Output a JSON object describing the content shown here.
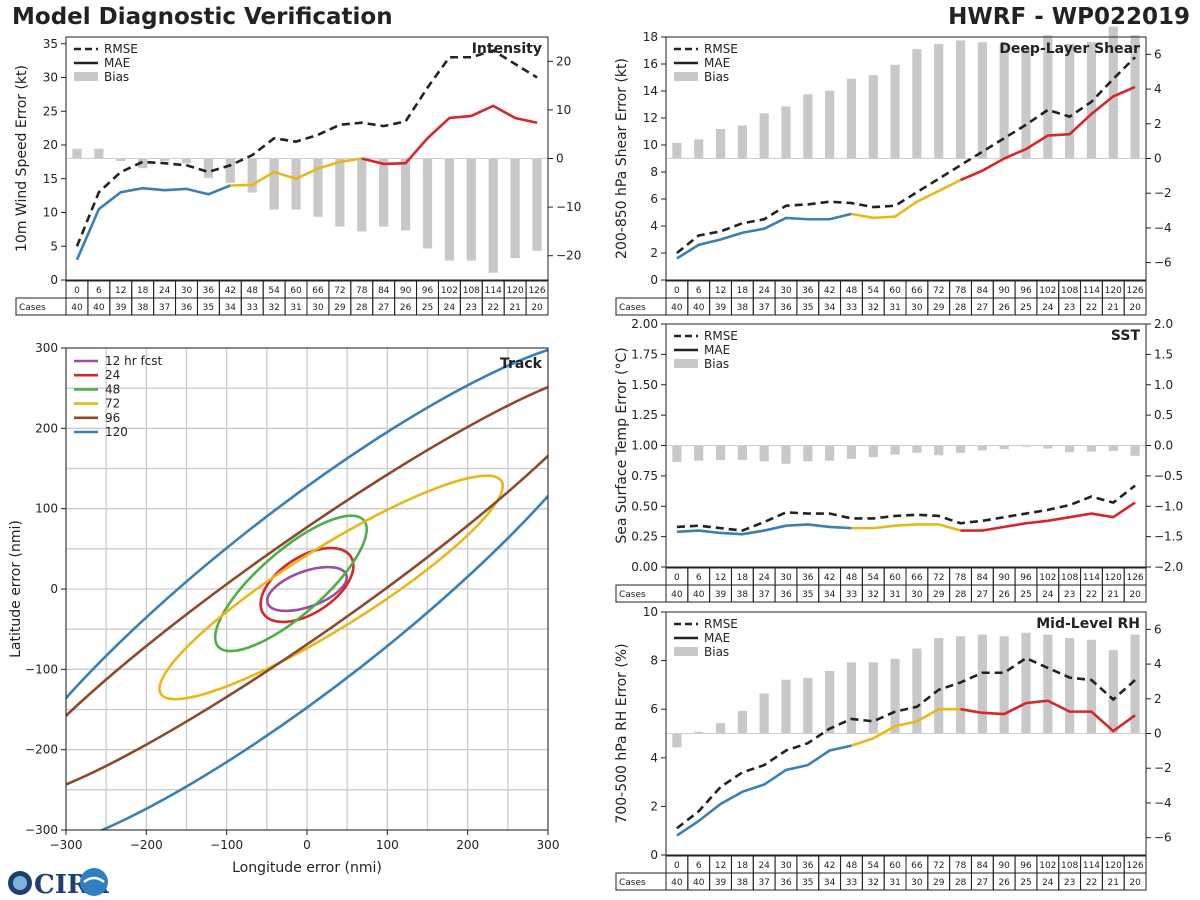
{
  "header": {
    "title": "Model Diagnostic Verification",
    "model_storm": "HWRF - WP022019"
  },
  "legend": {
    "rmse": "RMSE",
    "mae": "MAE",
    "bias": "Bias"
  },
  "colors": {
    "rmse": "#222222",
    "bias": "#c8c8c8",
    "mae_phases": [
      "#3a7fb5",
      "#e8b71a",
      "#d62728"
    ],
    "grid": "#cccccc"
  },
  "forecast_hours": [
    "0",
    "6",
    "12",
    "18",
    "24",
    "30",
    "36",
    "42",
    "48",
    "54",
    "60",
    "66",
    "72",
    "78",
    "84",
    "90",
    "96",
    "102",
    "108",
    "114",
    "120",
    "126"
  ],
  "cases": [
    40,
    40,
    39,
    38,
    37,
    36,
    35,
    34,
    33,
    32,
    31,
    30,
    29,
    28,
    27,
    26,
    25,
    24,
    23,
    22,
    21,
    20
  ],
  "cases_label": "Cases",
  "logo": {
    "text": "CIRA"
  },
  "chart_data": [
    {
      "id": "intensity",
      "type": "line",
      "title": "Intensity",
      "ylabel": "10m Wind Speed Error (kt)",
      "ylim": [
        0,
        36
      ],
      "yticks": [
        0,
        5,
        10,
        15,
        20,
        25,
        30,
        35
      ],
      "y2lim": [
        -25,
        25
      ],
      "y2ticks": [
        -20,
        -10,
        0,
        10,
        20
      ],
      "phase_breaks": [
        7,
        13
      ],
      "series": [
        {
          "name": "RMSE",
          "values": [
            5,
            13,
            16,
            17.5,
            17.3,
            17,
            16,
            17,
            18.5,
            21,
            20.5,
            21.5,
            23,
            23.3,
            22.8,
            23.5,
            28.5,
            33,
            33,
            34,
            32,
            30
          ]
        },
        {
          "name": "MAE",
          "values": [
            3,
            10.5,
            13,
            13.6,
            13.3,
            13.5,
            12.7,
            14,
            14.1,
            16,
            15,
            16.5,
            17.5,
            18,
            17.2,
            17.3,
            21,
            24,
            24.3,
            25.8,
            24,
            23.3
          ]
        },
        {
          "name": "Bias",
          "axis": "right",
          "values": [
            2,
            2,
            -0.5,
            -2,
            -0.5,
            -1,
            -4,
            -5,
            -7,
            -10.5,
            -10.5,
            -12,
            -14,
            -15,
            -14,
            -14.8,
            -18.5,
            -21,
            -21,
            -23.5,
            -20.5,
            -19
          ]
        }
      ]
    },
    {
      "id": "shear",
      "type": "line",
      "title": "Deep-Layer Shear",
      "ylabel": "200-850 hPa Shear Error (kt)",
      "ylim": [
        0,
        18
      ],
      "yticks": [
        0,
        2,
        4,
        6,
        8,
        10,
        12,
        14,
        16,
        18
      ],
      "y2lim": [
        -7,
        7
      ],
      "y2ticks": [
        -6,
        -4,
        -2,
        0,
        2,
        4,
        6
      ],
      "phase_breaks": [
        8,
        13
      ],
      "series": [
        {
          "name": "RMSE",
          "values": [
            2,
            3.3,
            3.6,
            4.2,
            4.5,
            5.5,
            5.6,
            5.8,
            5.7,
            5.4,
            5.5,
            6.5,
            7.5,
            8.5,
            9.5,
            10.5,
            11.5,
            12.6,
            12.1,
            13.2,
            14.9,
            16.5
          ]
        },
        {
          "name": "MAE",
          "values": [
            1.6,
            2.6,
            3,
            3.5,
            3.8,
            4.6,
            4.5,
            4.5,
            4.9,
            4.6,
            4.7,
            5.8,
            6.6,
            7.4,
            8.1,
            9,
            9.7,
            10.7,
            10.8,
            12.3,
            13.6,
            14.3
          ]
        },
        {
          "name": "Bias",
          "axis": "right",
          "values": [
            0.9,
            1.1,
            1.7,
            1.9,
            2.6,
            3,
            3.7,
            3.9,
            4.6,
            4.8,
            5.4,
            6.3,
            6.6,
            6.8,
            6.7,
            6.6,
            6.4,
            7.1,
            6.6,
            6.7,
            7.6,
            7.1
          ]
        }
      ]
    },
    {
      "id": "sst",
      "type": "line",
      "title": "SST",
      "ylabel": "Sea Surface Temp Error (°C)",
      "ylim": [
        0,
        2.0
      ],
      "yticks": [
        0,
        0.25,
        0.5,
        0.75,
        1.0,
        1.25,
        1.5,
        1.75,
        2.0
      ],
      "ytick_labels": [
        "0.00",
        "0.25",
        "0.50",
        "0.75",
        "1.00",
        "1.25",
        "1.50",
        "1.75",
        "2.00"
      ],
      "y2lim": [
        -2,
        2
      ],
      "y2ticks": [
        -2,
        -1.5,
        -1,
        -0.5,
        0,
        0.5,
        1,
        1.5,
        2
      ],
      "y2tick_labels": [
        "−2.0",
        "−1.5",
        "−1.0",
        "−0.5",
        "0.0",
        "0.5",
        "1.0",
        "1.5",
        "2.0"
      ],
      "phase_breaks": [
        8,
        13
      ],
      "series": [
        {
          "name": "RMSE",
          "values": [
            0.33,
            0.34,
            0.32,
            0.3,
            0.37,
            0.45,
            0.44,
            0.44,
            0.4,
            0.4,
            0.42,
            0.43,
            0.42,
            0.36,
            0.38,
            0.41,
            0.44,
            0.47,
            0.51,
            0.58,
            0.53,
            0.67
          ]
        },
        {
          "name": "MAE",
          "values": [
            0.29,
            0.3,
            0.28,
            0.27,
            0.3,
            0.34,
            0.35,
            0.33,
            0.32,
            0.32,
            0.34,
            0.35,
            0.35,
            0.3,
            0.3,
            0.33,
            0.36,
            0.38,
            0.41,
            0.44,
            0.41,
            0.53
          ]
        },
        {
          "name": "Bias",
          "axis": "right",
          "values": [
            -0.27,
            -0.25,
            -0.24,
            -0.24,
            -0.26,
            -0.3,
            -0.26,
            -0.25,
            -0.22,
            -0.19,
            -0.15,
            -0.12,
            -0.16,
            -0.12,
            -0.08,
            -0.06,
            -0.02,
            -0.05,
            -0.11,
            -0.1,
            -0.09,
            -0.17
          ]
        }
      ]
    },
    {
      "id": "rh",
      "type": "line",
      "title": "Mid-Level RH",
      "ylabel": "700-500 hPa RH Error (%)",
      "ylim": [
        0,
        10
      ],
      "yticks": [
        0,
        2,
        4,
        6,
        8,
        10
      ],
      "y2lim": [
        -7,
        7
      ],
      "y2ticks": [
        -6,
        -4,
        -2,
        0,
        2,
        4,
        6
      ],
      "phase_breaks": [
        8,
        13
      ],
      "series": [
        {
          "name": "RMSE",
          "values": [
            1.1,
            1.8,
            2.8,
            3.4,
            3.7,
            4.3,
            4.6,
            5.2,
            5.6,
            5.5,
            5.9,
            6.1,
            6.8,
            7.1,
            7.5,
            7.5,
            8.1,
            7.7,
            7.3,
            7.2,
            6.4,
            7.2
          ]
        },
        {
          "name": "MAE",
          "values": [
            0.8,
            1.4,
            2.1,
            2.6,
            2.9,
            3.5,
            3.7,
            4.3,
            4.5,
            4.8,
            5.3,
            5.5,
            6,
            6,
            5.85,
            5.8,
            6.25,
            6.35,
            5.9,
            5.9,
            5.1,
            5.75
          ]
        },
        {
          "name": "Bias",
          "axis": "right",
          "values": [
            -0.8,
            0.1,
            0.6,
            1.3,
            2.3,
            3.1,
            3.2,
            3.6,
            4.1,
            4.1,
            4.3,
            4.9,
            5.5,
            5.6,
            5.7,
            5.6,
            5.8,
            5.7,
            5.5,
            5.4,
            4.8,
            5.7
          ]
        }
      ]
    },
    {
      "id": "track",
      "type": "ellipse",
      "title": "Track",
      "xlabel": "Longitude error (nmi)",
      "ylabel": "Latitude error (nmi)",
      "xlim": [
        -300,
        300
      ],
      "ylim": [
        -300,
        300
      ],
      "xticks": [
        -300,
        -200,
        -100,
        0,
        100,
        200,
        300
      ],
      "yticks": [
        -300,
        -200,
        -100,
        0,
        100,
        200,
        300
      ],
      "ellipses": [
        {
          "label": "12 hr fcst",
          "color": "#984ea3",
          "cx": 0,
          "cy": 0,
          "a": 52,
          "b": 22,
          "angle_deg": 20
        },
        {
          "label": "24",
          "color": "#d62728",
          "cx": 0,
          "cy": 5,
          "a": 65,
          "b": 35,
          "angle_deg": 33
        },
        {
          "label": "48",
          "color": "#4daf4a",
          "cx": -20,
          "cy": 7,
          "a": 120,
          "b": 40,
          "angle_deg": 41
        },
        {
          "label": "72",
          "color": "#e8b71a",
          "cx": 30,
          "cy": 2,
          "a": 250,
          "b": 50,
          "angle_deg": 32
        },
        {
          "label": "96",
          "color": "#8b4a2b",
          "cx": 0,
          "cy": 4,
          "a": 450,
          "b": 60,
          "angle_deg": 35
        },
        {
          "label": "120",
          "color": "#3a7fb5",
          "cx": 0,
          "cy": -10,
          "a": 500,
          "b": 110,
          "angle_deg": 38
        }
      ]
    }
  ]
}
